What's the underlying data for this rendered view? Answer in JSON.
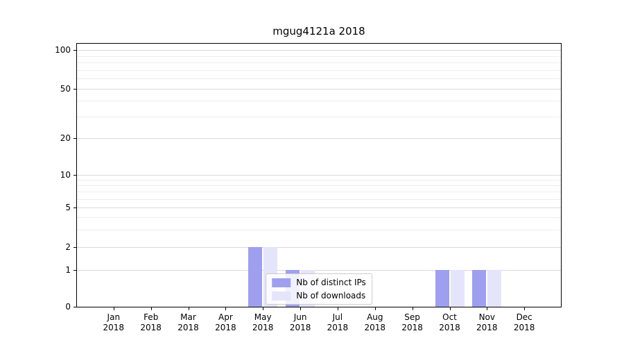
{
  "chart_data": {
    "type": "bar",
    "title": "mgug4121a 2018",
    "categories": [
      "Jan",
      "Feb",
      "Mar",
      "Apr",
      "May",
      "Jun",
      "Jul",
      "Aug",
      "Sep",
      "Oct",
      "Nov",
      "Dec"
    ],
    "category_year": "2018",
    "series": [
      {
        "name": "Nb of distinct IPs",
        "color": "#9f9ff0",
        "values": [
          0,
          0,
          0,
          0,
          2,
          1,
          0,
          0,
          0,
          1,
          1,
          0
        ]
      },
      {
        "name": "Nb of downloads",
        "color": "#e4e4fb",
        "values": [
          0,
          0,
          0,
          0,
          2,
          1,
          0,
          0,
          0,
          1,
          1,
          0
        ]
      }
    ],
    "yscale": "symlog",
    "y_major_ticks": [
      100,
      50,
      20,
      10,
      5,
      2,
      1,
      0
    ],
    "y_minor_ticks": [
      90,
      80,
      70,
      60,
      40,
      30,
      9,
      8,
      7,
      6,
      4,
      3
    ],
    "ylim_top_value": 110,
    "xlabel": "",
    "ylabel": "",
    "grid": "horizontal-light-gray",
    "legend_position": "lower-center-inside"
  }
}
